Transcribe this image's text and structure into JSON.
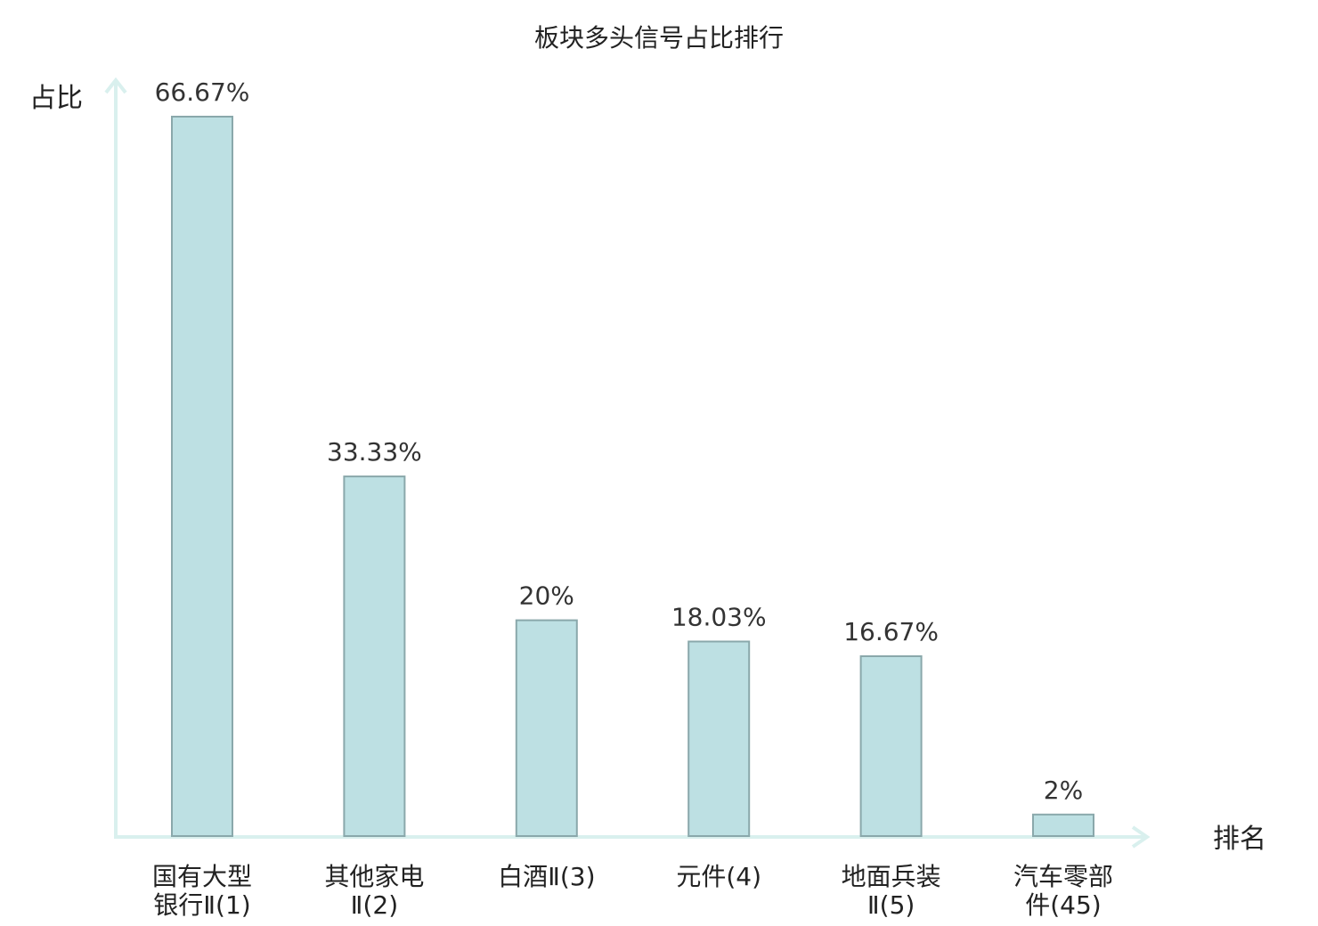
{
  "chart_data": {
    "type": "bar",
    "title": "板块多头信号占比排行",
    "ylabel": "占比",
    "xlabel": "排名",
    "categories": [
      {
        "lines": [
          "国有大型",
          "银行Ⅱ(1)"
        ],
        "highlight": false
      },
      {
        "lines": [
          "其他家电",
          "Ⅱ(2)"
        ],
        "highlight": false
      },
      {
        "lines": [
          "白酒Ⅱ(3)"
        ],
        "highlight": false
      },
      {
        "lines": [
          "元件(4)"
        ],
        "highlight": false
      },
      {
        "lines": [
          "地面兵装",
          "Ⅱ(5)"
        ],
        "highlight": false
      },
      {
        "lines": [
          "汽车零部",
          "件(45)"
        ],
        "highlight": true
      }
    ],
    "values": [
      66.67,
      33.33,
      20,
      18.03,
      16.67,
      2
    ],
    "value_labels": [
      "66.67%",
      "33.33%",
      "20%",
      "18.03%",
      "16.67%",
      "2%"
    ],
    "ylim": [
      0,
      66.67
    ],
    "grid": false,
    "colors": {
      "bar_fill": "#bde0e3",
      "bar_stroke": "#8aa8ab",
      "axis": "#d9f0ee",
      "highlight_text": "#e8161b",
      "text": "#222222"
    }
  }
}
